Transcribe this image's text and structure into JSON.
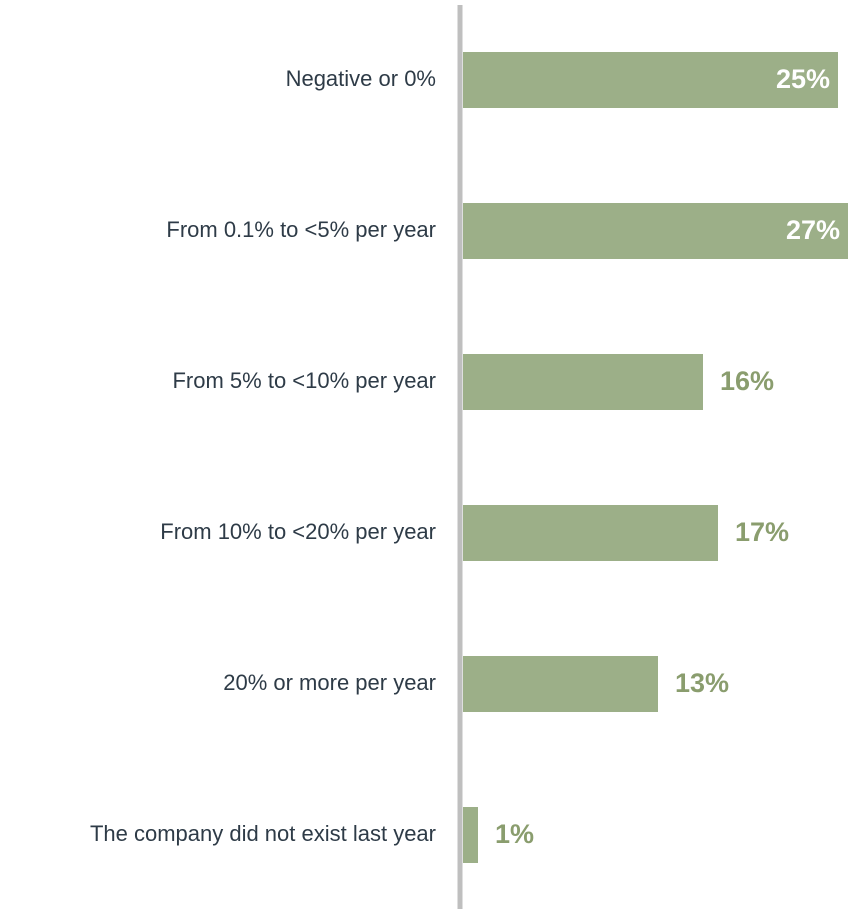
{
  "chart_data": {
    "type": "bar",
    "orientation": "horizontal",
    "categories": [
      "Negative or 0%",
      "From 0.1% to <5% per year",
      "From 5% to <10% per year",
      "From 10% to <20% per year",
      "20% or more per year",
      "The company did not exist last year"
    ],
    "values": [
      25,
      27,
      16,
      17,
      13,
      1
    ],
    "value_labels": [
      "25%",
      "27%",
      "16%",
      "17%",
      "13%",
      "1%"
    ],
    "color": "#9caf88"
  }
}
